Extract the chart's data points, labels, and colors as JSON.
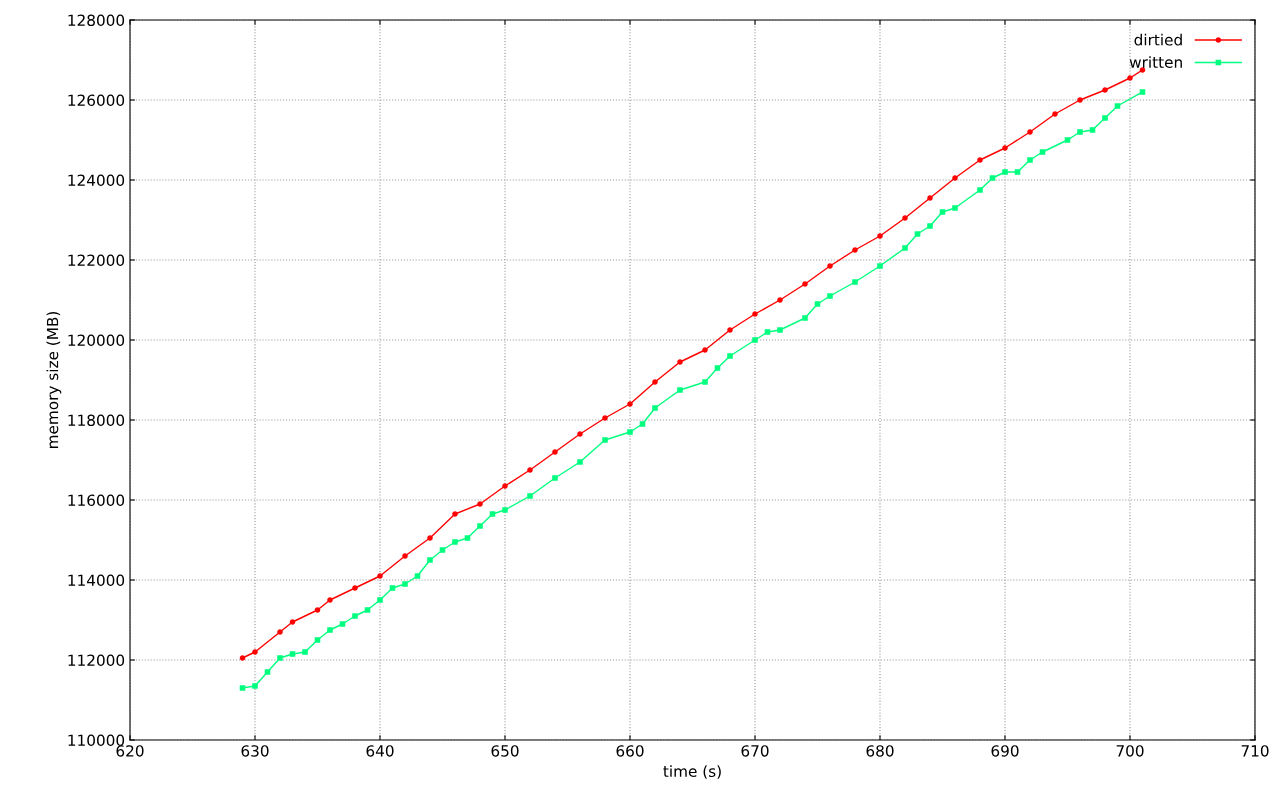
{
  "chart_data": {
    "type": "line",
    "xlabel": "time (s)",
    "ylabel": "memory size (MB)",
    "xlim": [
      620,
      710
    ],
    "xticks": [
      620,
      630,
      640,
      650,
      660,
      670,
      680,
      690,
      700,
      710
    ],
    "ylim": [
      110000,
      128000
    ],
    "yticks": [
      110000,
      112000,
      114000,
      116000,
      118000,
      120000,
      122000,
      124000,
      126000,
      128000
    ],
    "grid": true,
    "legend": "top right",
    "line_style": "solid",
    "series": [
      {
        "name": "dirtied",
        "color": "#ff0000",
        "marker": "circle",
        "x": [
          629,
          630,
          632,
          633,
          635,
          636,
          638,
          640,
          642,
          644,
          646,
          648,
          650,
          652,
          654,
          656,
          658,
          660,
          662,
          664,
          666,
          668,
          670,
          672,
          674,
          676,
          678,
          680,
          682,
          684,
          686,
          688,
          690,
          692,
          694,
          696,
          698,
          700,
          701
        ],
        "values": [
          112050,
          112200,
          112700,
          112950,
          113250,
          113500,
          113800,
          114100,
          114600,
          115050,
          115650,
          115900,
          116350,
          116750,
          117200,
          117650,
          118050,
          118400,
          118950,
          119450,
          119750,
          120250,
          120650,
          121000,
          121400,
          121850,
          122250,
          122600,
          123050,
          123550,
          124050,
          124500,
          124800,
          125200,
          125650,
          126000,
          126250,
          126550,
          126750
        ]
      },
      {
        "name": "written",
        "color": "#00ff7f",
        "marker": "square",
        "x": [
          629,
          630,
          631,
          632,
          633,
          634,
          635,
          636,
          637,
          638,
          639,
          640,
          641,
          642,
          643,
          644,
          645,
          646,
          647,
          648,
          649,
          650,
          652,
          654,
          656,
          658,
          660,
          661,
          662,
          664,
          666,
          667,
          668,
          670,
          671,
          672,
          674,
          675,
          676,
          678,
          680,
          682,
          683,
          684,
          685,
          686,
          688,
          689,
          690,
          691,
          692,
          693,
          695,
          696,
          697,
          698,
          699,
          701
        ],
        "values": [
          111300,
          111350,
          111700,
          112050,
          112150,
          112200,
          112500,
          112750,
          112900,
          113100,
          113250,
          113500,
          113800,
          113900,
          114100,
          114500,
          114750,
          114950,
          115050,
          115350,
          115650,
          115750,
          116100,
          116550,
          116950,
          117500,
          117700,
          117900,
          118300,
          118750,
          118950,
          119300,
          119600,
          120000,
          120200,
          120250,
          120550,
          120900,
          121100,
          121450,
          121850,
          122300,
          122650,
          122850,
          123200,
          123300,
          123750,
          124050,
          124200,
          124200,
          124500,
          124700,
          125000,
          125200,
          125250,
          125550,
          125850,
          126200
        ]
      }
    ]
  }
}
